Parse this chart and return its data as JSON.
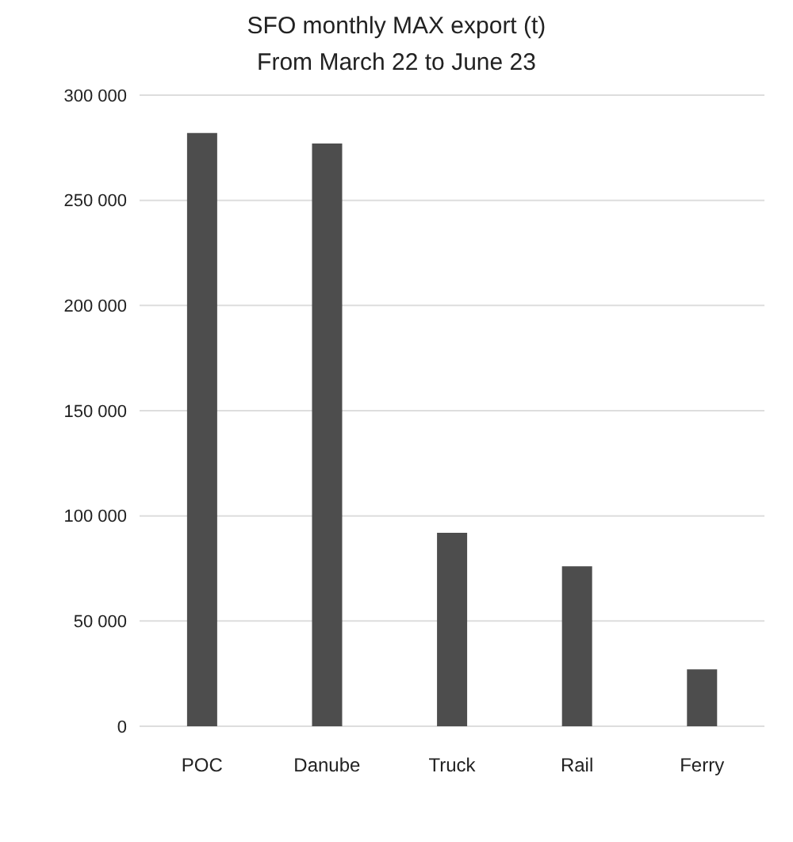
{
  "chart_data": {
    "type": "bar",
    "title": "SFO monthly MAX export (t)",
    "subtitle": "From March 22 to June 23",
    "categories": [
      "POC",
      "Danube",
      "Truck",
      "Rail",
      "Ferry"
    ],
    "values": [
      282000,
      277000,
      92000,
      76000,
      27000
    ],
    "color": "#4d4d4d",
    "ylim": [
      0,
      300000
    ],
    "yticks": [
      {
        "value": 0,
        "label": "0"
      },
      {
        "value": 50000,
        "label": "50 000"
      },
      {
        "value": 100000,
        "label": "100 000"
      },
      {
        "value": 150000,
        "label": "150 000"
      },
      {
        "value": 200000,
        "label": "200 000"
      },
      {
        "value": 250000,
        "label": "250 000"
      },
      {
        "value": 300000,
        "label": "300 000"
      }
    ],
    "grid": "y"
  }
}
